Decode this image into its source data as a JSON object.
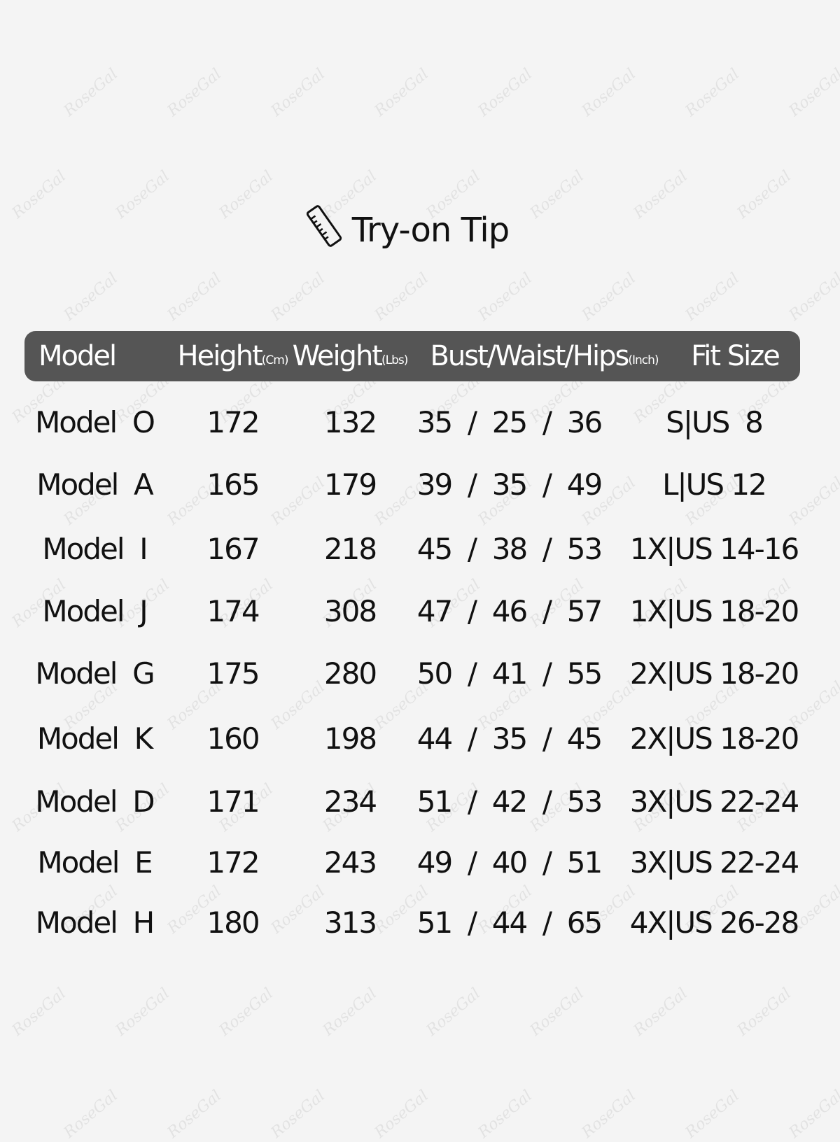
{
  "watermark": "RoseGal",
  "title": "Try-on Tip",
  "title_icon": "ruler-icon",
  "colors": {
    "header_bg": "#555555",
    "background": "#f4f4f4"
  },
  "columns": [
    {
      "label": "Model",
      "unit": ""
    },
    {
      "label": "Height",
      "unit": "(Cm)"
    },
    {
      "label": "Weight",
      "unit": "(Lbs)"
    },
    {
      "label": "Bust/Waist/Hips",
      "unit": "(Inch)"
    },
    {
      "label": "Fit Size",
      "unit": ""
    }
  ],
  "rows": [
    {
      "model": "Model  O",
      "height": "172",
      "weight": "132",
      "bwh": "35  /  25  /  36",
      "fit": "S|US  8"
    },
    {
      "model": "Model  A",
      "height": "165",
      "weight": "179",
      "bwh": "39  /  35  /  49",
      "fit": "L|US 12"
    },
    {
      "model": "Model  I",
      "height": "167",
      "weight": "218",
      "bwh": "45  /  38  /  53",
      "fit": "1X|US 14-16"
    },
    {
      "model": "Model  J",
      "height": "174",
      "weight": "308",
      "bwh": "47  /  46  /  57",
      "fit": "1X|US 18-20"
    },
    {
      "model": "Model  G",
      "height": "175",
      "weight": "280",
      "bwh": "50  /  41  /  55",
      "fit": "2X|US 18-20"
    },
    {
      "model": "Model  K",
      "height": "160",
      "weight": "198",
      "bwh": "44  /  35  /  45",
      "fit": "2X|US 18-20"
    },
    {
      "model": "Model  D",
      "height": "171",
      "weight": "234",
      "bwh": "51  /  42  /  53",
      "fit": "3X|US 22-24"
    },
    {
      "model": "Model  E",
      "height": "172",
      "weight": "243",
      "bwh": "49  /  40  /  51",
      "fit": "3X|US 22-24"
    },
    {
      "model": "Model  H",
      "height": "180",
      "weight": "313",
      "bwh": "51  /  44  /  65",
      "fit": "4X|US 26-28"
    }
  ]
}
